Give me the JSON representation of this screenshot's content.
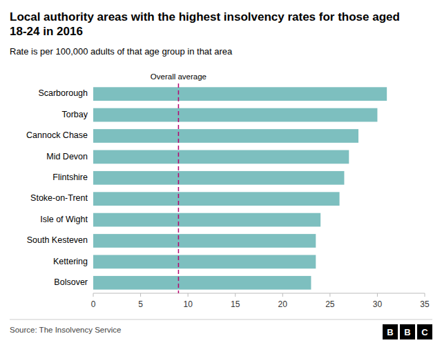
{
  "chart_data": {
    "type": "bar",
    "orientation": "horizontal",
    "title": "Local authority areas with the highest insolvency rates for those aged 18-24 in 2016",
    "subtitle": "Rate is per 100,000 adults of that age group in that area",
    "categories": [
      "Bolsover",
      "Kettering",
      "South Kesteven",
      "Isle of Wight",
      "Stoke-on-Trent",
      "Flintshire",
      "Mid Devon",
      "Cannock Chase",
      "Torbay",
      "Scarborough"
    ],
    "values": [
      23.0,
      23.5,
      23.5,
      24.0,
      26.0,
      26.5,
      27.0,
      28.0,
      30.0,
      31.0
    ],
    "color": "#7dbfbf",
    "reference_lines": [
      {
        "value": 9.0,
        "label": "Overall average",
        "color": "#b5006e"
      }
    ],
    "xlim": [
      0,
      35
    ],
    "xticks": [
      0,
      5,
      10,
      15,
      20,
      25,
      30,
      35
    ],
    "grid": false,
    "source": "Source: The Insolvency Service",
    "logo": "BBC"
  }
}
